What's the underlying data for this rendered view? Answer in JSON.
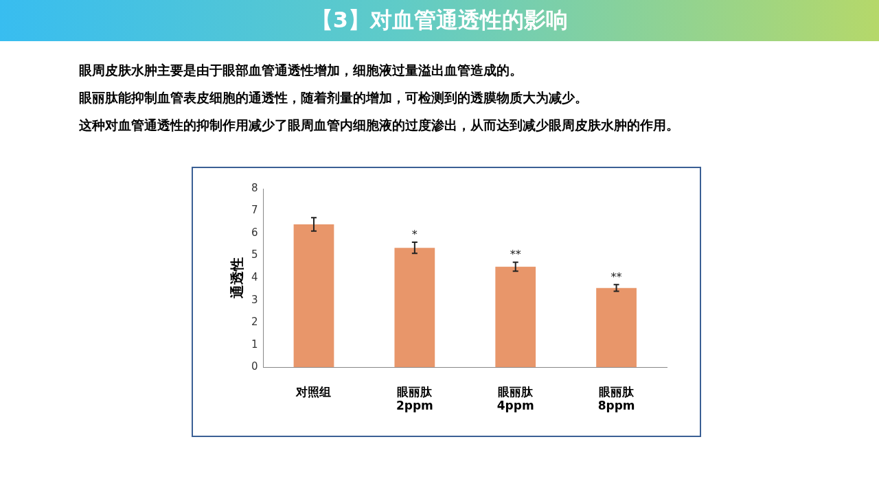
{
  "chart_data": {
    "type": "bar",
    "title": "【3】对血管通透性的影响",
    "subtitle": "眼周皮肤水肿主要是由于眼部血管通透性增加，细胞液过量溢出血管造成的。",
    "annotations": [
      "眼丽肽能抑制血管表皮细胞的通透性，随着剂量的增加，可检测到的透膜物质大为减少。",
      "这种对血管通透性的抑制作用减少了眼周血管内细胞液的过度渗出，从而达到减少眼周皮肤水肿的作用。",
      {
        "text": "*",
        "x": "眼丽肽 2ppm",
        "y": 5.35
      },
      {
        "text": "**",
        "x": "眼丽肽 4ppm",
        "y": 4.5
      },
      {
        "text": "**",
        "x": "眼丽肽 8ppm",
        "y": 3.55
      }
    ],
    "ylabel": "通透性",
    "categories": [
      "对照组",
      "眼丽肽 2ppm",
      "眼丽肽 4ppm",
      "眼丽肽 8ppm"
    ],
    "values": [
      6.4,
      5.35,
      4.5,
      3.55
    ],
    "errors": [
      0.3,
      0.25,
      0.2,
      0.15
    ],
    "color": "#e8966a",
    "ylim": [
      0,
      8
    ],
    "yticks": [
      0,
      1,
      2,
      3,
      4,
      5,
      6,
      7,
      8
    ],
    "grid": false,
    "legend": false
  }
}
